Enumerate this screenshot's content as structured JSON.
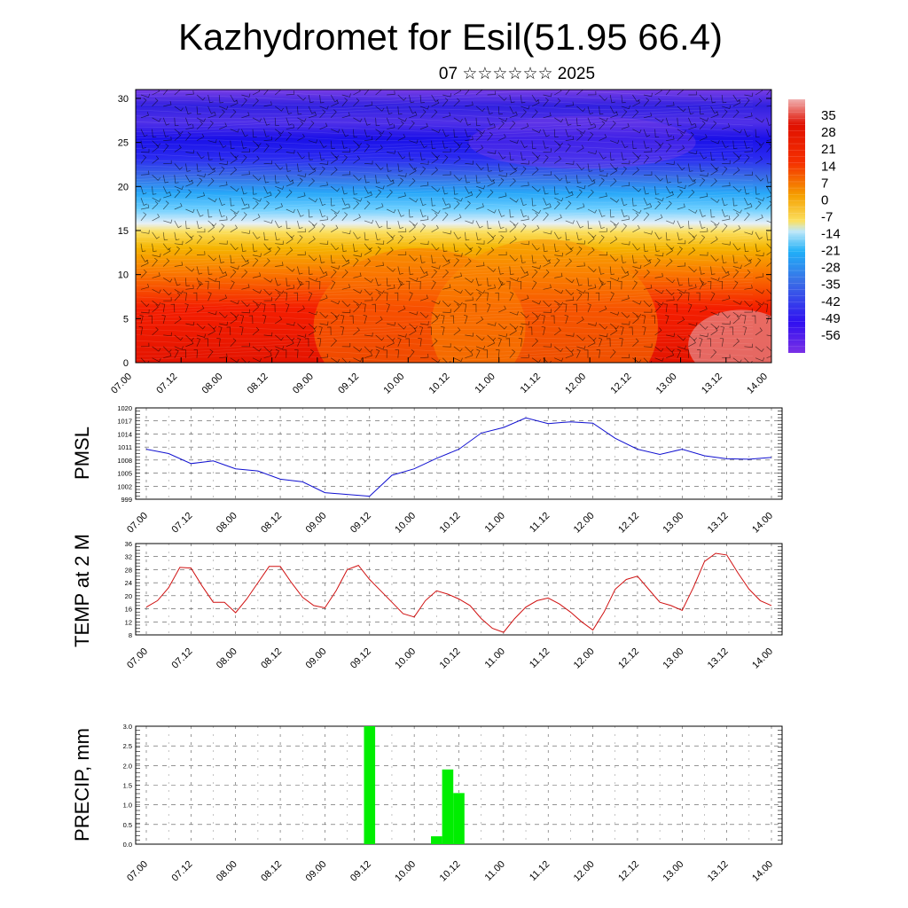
{
  "header": {
    "title": "Kazhydromet for Esil(51.95 66.4)",
    "subtitle": "07 ☆☆☆☆☆☆ 2025"
  },
  "time_ticks": [
    "07.00",
    "07.12",
    "08.00",
    "08.12",
    "09.00",
    "09.12",
    "10.00",
    "10.12",
    "11.00",
    "11.12",
    "12.00",
    "12.12",
    "13.00",
    "13.12",
    "14.00"
  ],
  "colors": {
    "pmsl": "#1010d0",
    "temp": "#d01010",
    "precip": "#00ee00"
  },
  "chart_data": [
    {
      "type": "heatmap",
      "title": "",
      "xlabel": "",
      "ylabel": "",
      "x_range": [
        0,
        168
      ],
      "ylim": [
        0,
        31
      ],
      "y_ticks": [
        0,
        5,
        10,
        15,
        20,
        25,
        30
      ],
      "colorbar_labels": [
        "35",
        "28",
        "21",
        "14",
        "7",
        "0",
        "-7",
        "-14",
        "-21",
        "-28",
        "-35",
        "-42",
        "-49",
        "-56"
      ],
      "colorbar_range": [
        -63,
        42
      ],
      "legend_position": "right",
      "overlay": "wind barbs"
    },
    {
      "type": "line",
      "ylabel": "PMSL",
      "ylim": [
        999,
        1020
      ],
      "y_ticks": [
        999,
        1002,
        1005,
        1008,
        1011,
        1014,
        1017,
        1020
      ],
      "x": [
        0,
        6,
        12,
        18,
        24,
        30,
        36,
        42,
        48,
        54,
        60,
        66,
        72,
        78,
        84,
        90,
        96,
        102,
        108,
        114,
        120,
        126,
        132,
        138,
        144,
        150,
        156,
        162,
        168
      ],
      "values": [
        1010.5,
        1009.5,
        1007.2,
        1007.8,
        1006.0,
        1005.5,
        1003.6,
        1003.0,
        1000.5,
        1000.1,
        999.7,
        1004.5,
        1006.0,
        1008.4,
        1010.5,
        1014.2,
        1015.5,
        1017.7,
        1016.4,
        1016.8,
        1016.5,
        1013.0,
        1010.5,
        1009.3,
        1010.5,
        1009.0,
        1008.3,
        1008.2,
        1008.6
      ],
      "grid": true
    },
    {
      "type": "line",
      "ylabel": "TEMP at 2 M",
      "ylim": [
        8,
        36
      ],
      "y_ticks": [
        8,
        12,
        16,
        20,
        24,
        28,
        32,
        36
      ],
      "x": [
        0,
        3,
        6,
        9,
        12,
        15,
        18,
        21,
        24,
        27,
        30,
        33,
        36,
        39,
        42,
        45,
        48,
        51,
        54,
        57,
        60,
        63,
        66,
        69,
        72,
        75,
        78,
        81,
        84,
        87,
        90,
        93,
        96,
        99,
        102,
        105,
        108,
        111,
        114,
        117,
        120,
        123,
        126,
        129,
        132,
        135,
        138,
        141,
        144,
        147,
        150,
        153,
        156,
        159,
        162,
        165,
        168
      ],
      "values": [
        16.5,
        18.5,
        22.5,
        28.7,
        28.5,
        23.0,
        18.0,
        18.0,
        14.8,
        19.0,
        24.0,
        29.0,
        29.0,
        24.0,
        19.5,
        17.0,
        16.3,
        21.5,
        28.0,
        29.3,
        25.0,
        21.5,
        18.0,
        14.5,
        13.5,
        18.5,
        21.5,
        20.5,
        19.0,
        17.0,
        13.0,
        10.0,
        8.8,
        13.0,
        16.5,
        18.5,
        19.3,
        17.5,
        15.0,
        12.0,
        9.5,
        15.0,
        22.0,
        25.0,
        26.0,
        22.0,
        18.0,
        17.0,
        15.5,
        22.5,
        30.5,
        33.0,
        32.5,
        27.0,
        22.0,
        18.5,
        17.0
      ],
      "grid": true
    },
    {
      "type": "bar",
      "ylabel": "PRECIP, mm",
      "ylim": [
        0,
        3
      ],
      "y_ticks": [
        "0.0",
        "0.5",
        "1.0",
        "1.5",
        "2.0",
        "2.5",
        "3.0"
      ],
      "x": [
        60,
        78,
        81,
        84
      ],
      "values": [
        3.0,
        0.2,
        1.9,
        1.3
      ],
      "bar_width_hours": 3,
      "grid": true
    }
  ]
}
